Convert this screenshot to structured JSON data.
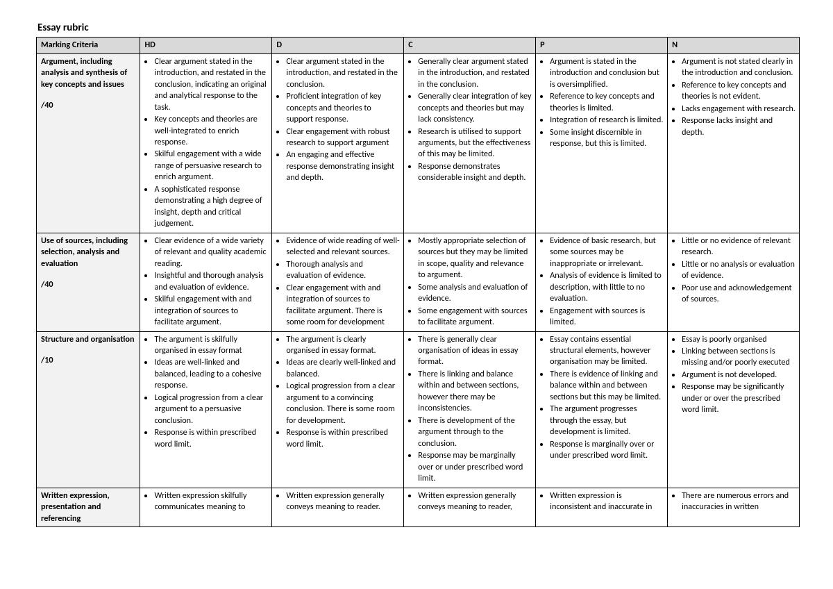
{
  "title": "Essay rubric",
  "colors": {
    "header_bg": "#d9d9d9",
    "criteria_bg": "#f2f2f2",
    "border": "#000000",
    "page_bg": "#ffffff",
    "text": "#000000"
  },
  "typography": {
    "title_fontsize": 15,
    "cell_fontsize": 12.2,
    "font_family": "Calibri"
  },
  "headers": {
    "criteria": "Marking Criteria",
    "hd": "HD",
    "d": "D",
    "c": "C",
    "p": "P",
    "n": "N"
  },
  "rows": [
    {
      "criteria_label": "Argument, including analysis and synthesis of key concepts and issues",
      "weight": "/40",
      "hd": [
        "Clear argument stated in the introduction, and restated in the conclusion, indicating an original and analytical response to the task.",
        "Key concepts and theories are well-integrated to enrich response.",
        "Skilful engagement with a wide range of persuasive research to enrich argument.",
        "A sophisticated response demonstrating a high degree of insight, depth and critical judgement."
      ],
      "d": [
        "Clear argument stated in the introduction, and restated in the conclusion.",
        "Proficient integration of key concepts and theories to support response.",
        "Clear engagement with robust research to support argument",
        "An engaging and effective response demonstrating insight and depth."
      ],
      "c": [
        "Generally clear argument stated in the introduction, and restated in the conclusion.",
        "Generally clear integration of key concepts and theories but may lack consistency.",
        "Research is utilised to support arguments, but the effectiveness of this may be limited.",
        "Response demonstrates considerable insight and depth."
      ],
      "p": [
        "Argument is stated in the introduction and conclusion but is oversimplified.",
        "Reference to key concepts and theories is limited.",
        "Integration of research is limited.",
        "Some insight discernible in response, but this is limited."
      ],
      "n": [
        "Argument is not stated clearly in the introduction and conclusion.",
        "Reference to key concepts and theories is not evident.",
        "Lacks engagement with research.",
        "Response lacks insight and depth."
      ]
    },
    {
      "criteria_label": "Use of sources, including selection, analysis and evaluation",
      "weight": "/40",
      "hd": [
        "Clear evidence of a wide variety of relevant and quality academic reading.",
        "Insightful and thorough analysis and evaluation of evidence.",
        "Skilful engagement with and integration of sources to facilitate argument."
      ],
      "d": [
        "Evidence of wide reading of well-selected and relevant sources.",
        "Thorough analysis and evaluation of evidence.",
        "Clear engagement with and integration of sources to facilitate argument. There is some room for development"
      ],
      "c": [
        "Mostly appropriate selection of sources but they may be limited in scope, quality and relevance to argument.",
        "Some analysis and evaluation of evidence.",
        "Some engagement with sources to facilitate argument."
      ],
      "p": [
        "Evidence of basic research, but some sources may be inappropriate or irrelevant.",
        "Analysis of evidence is limited to description, with little to no evaluation.",
        "Engagement with sources is limited."
      ],
      "n": [
        "Little or no evidence of relevant research.",
        "Little or no analysis or evaluation of evidence.",
        "Poor use and acknowledgement of sources."
      ]
    },
    {
      "criteria_label": "Structure and organisation",
      "weight": "/10",
      "hd": [
        "The argument is skilfully organised in essay format",
        "Ideas are well-linked and balanced, leading to a cohesive response.",
        "Logical progression from a clear argument to a persuasive conclusion.",
        "Response is within prescribed word limit."
      ],
      "d": [
        "The argument is clearly organised in essay format.",
        "Ideas are clearly well-linked and balanced.",
        "Logical progression from a clear argument to a convincing conclusion.  There is some room for development.",
        "Response is within prescribed word limit."
      ],
      "c": [
        "There is generally clear organisation of ideas in essay format.",
        "There is linking and balance within and between sections, however there may be inconsistencies.",
        "There is development of the argument through to the conclusion.",
        "Response may be marginally over or under prescribed word limit."
      ],
      "p": [
        "Essay contains essential structural elements, however organisation may be limited.",
        "There is evidence of linking and balance within and between sections but this may be limited.",
        "The argument progresses through the essay, but development is limited.",
        "Response is marginally over or under prescribed word limit."
      ],
      "n": [
        "Essay is poorly organised",
        "Linking between sections is missing and/or poorly executed",
        "Argument is not developed.",
        "Response may be significantly under or over the prescribed word limit."
      ]
    },
    {
      "criteria_label": "Written expression, presentation and referencing",
      "weight": "",
      "hd": [
        "Written expression skilfully communicates meaning to"
      ],
      "d": [
        "Written expression generally conveys meaning to reader."
      ],
      "c": [
        "Written expression generally conveys meaning to reader,"
      ],
      "p": [
        "Written expression is inconsistent and inaccurate in"
      ],
      "n": [
        "There are numerous errors and inaccuracies in written"
      ]
    }
  ]
}
